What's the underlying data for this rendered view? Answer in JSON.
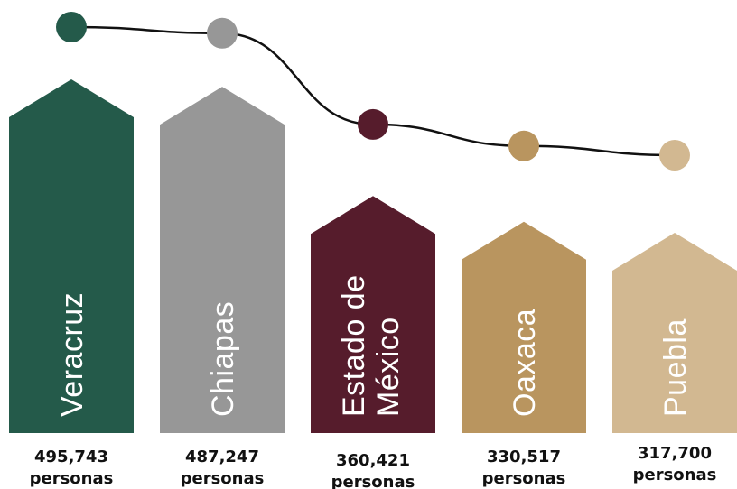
{
  "chart_data": {
    "type": "bar",
    "title": "",
    "xlabel": "",
    "ylabel": "",
    "ylim": [
      0,
      500000
    ],
    "grid": false,
    "legend": "none",
    "unit_label": "personas",
    "categories": [
      "Veracruz",
      "Chiapas",
      "Estado de México",
      "Oaxaca",
      "Puebla"
    ],
    "label_lines": [
      [
        "Veracruz"
      ],
      [
        "Chiapas"
      ],
      [
        "Estado de",
        "México"
      ],
      [
        "Oaxaca"
      ],
      [
        "Puebla"
      ]
    ],
    "values": [
      495743,
      487247,
      360421,
      330517,
      317700
    ],
    "value_labels": [
      "495,743",
      "487,247",
      "360,421",
      "330,517",
      "317,700"
    ],
    "colors": [
      "#245a4a",
      "#979797",
      "#561c2c",
      "#b9955f",
      "#d2b891"
    ],
    "line_color": "#111111"
  }
}
